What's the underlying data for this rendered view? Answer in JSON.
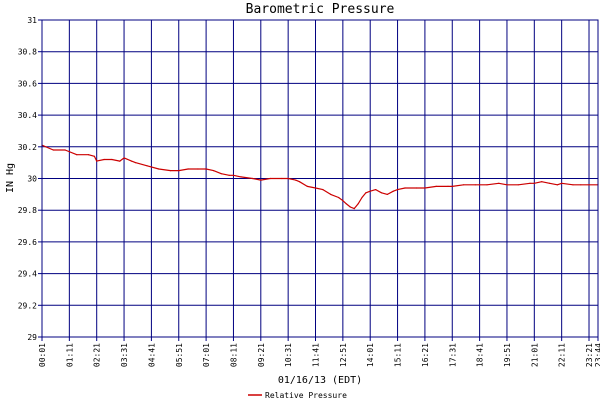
{
  "chart_data": {
    "type": "line",
    "title": "Barometric Pressure",
    "xlabel": "01/16/13 (EDT)",
    "ylabel": "IN Hg",
    "ylim": [
      29,
      31
    ],
    "yticks": [
      "29",
      "29.2",
      "29.4",
      "29.6",
      "29.8",
      "30",
      "30.2",
      "30.4",
      "30.6",
      "30.8",
      "31"
    ],
    "xticks": [
      "00:01",
      "01:11",
      "02:21",
      "03:31",
      "04:41",
      "05:51",
      "07:01",
      "08:11",
      "09:21",
      "10:31",
      "11:41",
      "12:51",
      "14:01",
      "15:11",
      "16:21",
      "17:31",
      "18:41",
      "19:51",
      "21:01",
      "22:11",
      "23:21",
      "23:44"
    ],
    "grid": true,
    "legend_position": "bottom-center",
    "colors": {
      "grid": "#000080",
      "series": "#cc0000",
      "background": "#ffffff"
    },
    "series": [
      {
        "name": "Relative Pressure",
        "x": [
          "00:01",
          "00:30",
          "01:00",
          "01:30",
          "02:00",
          "02:15",
          "02:21",
          "02:40",
          "03:00",
          "03:20",
          "03:31",
          "03:50",
          "04:00",
          "04:30",
          "05:00",
          "05:30",
          "05:51",
          "06:15",
          "06:40",
          "07:01",
          "07:20",
          "07:40",
          "08:00",
          "08:11",
          "08:30",
          "09:00",
          "09:21",
          "09:45",
          "10:15",
          "10:31",
          "10:50",
          "11:00",
          "11:20",
          "11:41",
          "12:00",
          "12:20",
          "12:40",
          "12:51",
          "13:00",
          "13:10",
          "13:20",
          "13:30",
          "13:40",
          "13:50",
          "14:01",
          "14:15",
          "14:30",
          "14:45",
          "15:00",
          "15:11",
          "15:30",
          "16:00",
          "16:21",
          "16:50",
          "17:20",
          "17:31",
          "18:00",
          "18:30",
          "18:41",
          "19:00",
          "19:30",
          "19:51",
          "20:20",
          "20:50",
          "21:01",
          "21:20",
          "21:40",
          "22:00",
          "22:11",
          "22:40",
          "23:00",
          "23:21",
          "23:44"
        ],
        "values": [
          30.21,
          30.18,
          30.18,
          30.15,
          30.15,
          30.14,
          30.11,
          30.12,
          30.12,
          30.11,
          30.13,
          30.11,
          30.1,
          30.08,
          30.06,
          30.05,
          30.05,
          30.06,
          30.06,
          30.06,
          30.05,
          30.03,
          30.02,
          30.02,
          30.01,
          30.0,
          29.99,
          30.0,
          30.0,
          30.0,
          29.99,
          29.98,
          29.95,
          29.94,
          29.93,
          29.9,
          29.88,
          29.86,
          29.84,
          29.82,
          29.81,
          29.84,
          29.88,
          29.91,
          29.92,
          29.93,
          29.91,
          29.9,
          29.92,
          29.93,
          29.94,
          29.94,
          29.94,
          29.95,
          29.95,
          29.95,
          29.96,
          29.96,
          29.96,
          29.96,
          29.97,
          29.96,
          29.96,
          29.97,
          29.97,
          29.98,
          29.97,
          29.96,
          29.97,
          29.96,
          29.96,
          29.96,
          29.96
        ]
      }
    ]
  }
}
